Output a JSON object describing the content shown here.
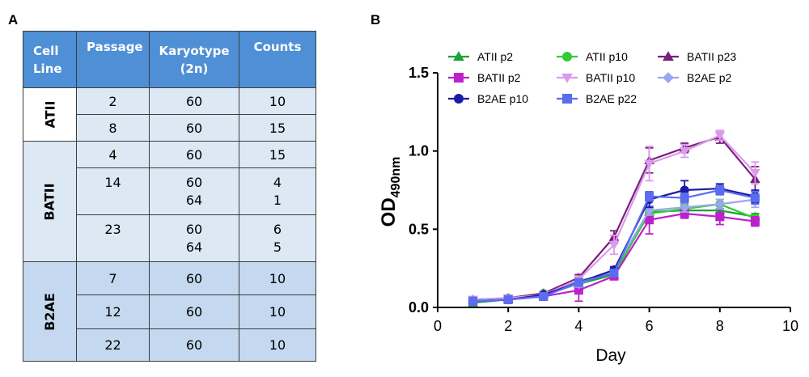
{
  "panel_labels": {
    "a": "A",
    "b": "B"
  },
  "table": {
    "headers": [
      "Cell Line",
      "Passage",
      "Karyotype (2n)",
      "Counts"
    ],
    "header_lines": {
      "cell_line": [
        "Cell",
        "Line"
      ],
      "karyotype": [
        "Karyotype",
        "(2n)"
      ]
    },
    "groups": [
      {
        "name": "ATII",
        "rows": [
          {
            "passage": "2",
            "karyotype": [
              "60"
            ],
            "counts": [
              "10"
            ]
          },
          {
            "passage": "8",
            "karyotype": [
              "60"
            ],
            "counts": [
              "15"
            ]
          }
        ]
      },
      {
        "name": "BATII",
        "rows": [
          {
            "passage": "4",
            "karyotype": [
              "60"
            ],
            "counts": [
              "15"
            ]
          },
          {
            "passage": "14",
            "karyotype": [
              "60",
              "64"
            ],
            "counts": [
              "4",
              "1"
            ]
          },
          {
            "passage": "23",
            "karyotype": [
              "60",
              "64"
            ],
            "counts": [
              "6",
              "5"
            ]
          }
        ]
      },
      {
        "name": "B2AE",
        "rows": [
          {
            "passage": "7",
            "karyotype": [
              "60"
            ],
            "counts": [
              "10"
            ]
          },
          {
            "passage": "12",
            "karyotype": [
              "60"
            ],
            "counts": [
              "10"
            ]
          },
          {
            "passage": "22",
            "karyotype": [
              "60"
            ],
            "counts": [
              "10"
            ]
          }
        ]
      }
    ]
  },
  "chart_data": {
    "type": "line",
    "xlabel": "Day",
    "ylabel_main": "OD",
    "ylabel_sub": "490nm",
    "xlim": [
      0,
      10
    ],
    "ylim": [
      0,
      1.5
    ],
    "xticks": [
      "0",
      "2",
      "4",
      "6",
      "8",
      "10"
    ],
    "yticks": [
      "0.0",
      "0.5",
      "1.0",
      "1.5"
    ],
    "grid": false,
    "legend_position": "top",
    "x": [
      1,
      2,
      3,
      4,
      5,
      6,
      7,
      8,
      9
    ],
    "series": [
      {
        "name": "ATII p2",
        "color": "#1aa33a",
        "marker": "triangle",
        "values": [
          0.03,
          0.05,
          0.08,
          0.15,
          0.21,
          0.61,
          0.62,
          0.62,
          0.58
        ],
        "errors": [
          0.01,
          0.01,
          0.01,
          0.02,
          0.02,
          0.03,
          0.03,
          0.03,
          0.02
        ]
      },
      {
        "name": "ATII p10",
        "color": "#33cc33",
        "marker": "circle",
        "values": [
          0.04,
          0.06,
          0.09,
          0.17,
          0.22,
          0.6,
          0.63,
          0.66,
          0.57
        ],
        "errors": [
          0.01,
          0.01,
          0.01,
          0.02,
          0.02,
          0.03,
          0.03,
          0.03,
          0.02
        ]
      },
      {
        "name": "BATII p23",
        "color": "#7a1f7a",
        "marker": "triangle",
        "values": [
          0.05,
          0.06,
          0.09,
          0.19,
          0.45,
          0.94,
          1.02,
          1.09,
          0.82
        ],
        "errors": [
          0.01,
          0.01,
          0.01,
          0.02,
          0.04,
          0.08,
          0.03,
          0.04,
          0.08
        ]
      },
      {
        "name": "BATII p2",
        "color": "#bb22cc",
        "marker": "square",
        "values": [
          0.04,
          0.05,
          0.07,
          0.11,
          0.2,
          0.56,
          0.6,
          0.58,
          0.55
        ],
        "errors": [
          0.01,
          0.01,
          0.01,
          0.07,
          0.02,
          0.09,
          0.03,
          0.05,
          0.03
        ]
      },
      {
        "name": "BATII p10",
        "color": "#dd99ee",
        "marker": "triangle-down",
        "values": [
          0.05,
          0.06,
          0.08,
          0.18,
          0.4,
          0.92,
          1.0,
          1.1,
          0.86
        ],
        "errors": [
          0.01,
          0.01,
          0.01,
          0.02,
          0.06,
          0.11,
          0.04,
          0.03,
          0.07
        ]
      },
      {
        "name": "B2AE p2",
        "color": "#9aa6ee",
        "marker": "diamond",
        "values": [
          0.05,
          0.05,
          0.08,
          0.15,
          0.24,
          0.62,
          0.64,
          0.66,
          0.69
        ],
        "errors": [
          0.01,
          0.01,
          0.01,
          0.02,
          0.02,
          0.03,
          0.03,
          0.03,
          0.05
        ]
      },
      {
        "name": "B2AE p10",
        "color": "#1a1aa6",
        "marker": "circle",
        "values": [
          0.04,
          0.05,
          0.08,
          0.16,
          0.24,
          0.69,
          0.75,
          0.76,
          0.71
        ],
        "errors": [
          0.01,
          0.01,
          0.01,
          0.02,
          0.02,
          0.05,
          0.06,
          0.03,
          0.04
        ]
      },
      {
        "name": "B2AE p22",
        "color": "#5a6cf0",
        "marker": "square",
        "values": [
          0.04,
          0.05,
          0.07,
          0.16,
          0.22,
          0.71,
          0.7,
          0.75,
          0.7
        ],
        "errors": [
          0.01,
          0.01,
          0.01,
          0.02,
          0.02,
          0.03,
          0.03,
          0.03,
          0.04
        ]
      }
    ]
  }
}
